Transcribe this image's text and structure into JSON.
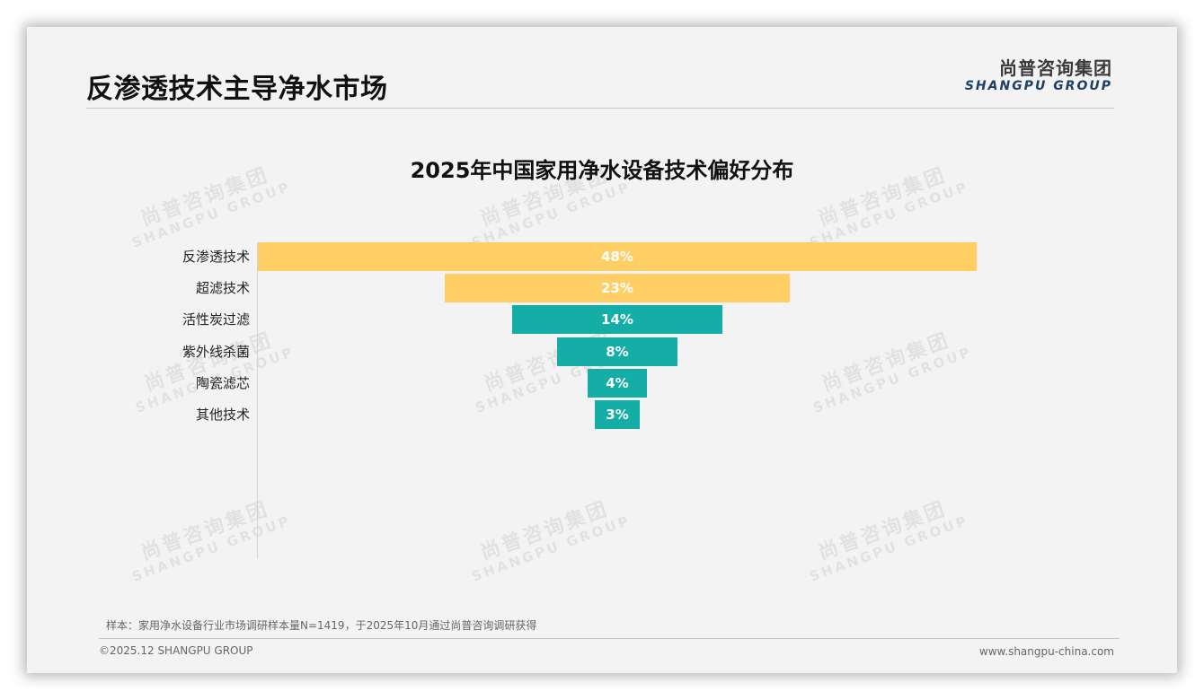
{
  "header": {
    "title": "反渗透技术主导净水市场",
    "logo_cn": "尚普咨询集团",
    "logo_en": "SHANGPU GROUP"
  },
  "watermark": {
    "cn": "尚普咨询集团",
    "en": "SHANGPU GROUP"
  },
  "colors": {
    "highlight": "#ffcf66",
    "primary": "#14aea6",
    "background": "#f3f3f3"
  },
  "chart_data": {
    "type": "bar",
    "subtype": "funnel",
    "title": "2025年中国家用净水设备技术偏好分布",
    "categories": [
      "反渗透技术",
      "超滤技术",
      "活性炭过滤",
      "紫外线杀菌",
      "陶瓷滤芯",
      "其他技术"
    ],
    "values": [
      48,
      23,
      14,
      8,
      4,
      3
    ],
    "value_labels": [
      "48%",
      "23%",
      "14%",
      "8%",
      "4%",
      "3%"
    ],
    "unit": "%",
    "bar_colors": [
      "#ffcf66",
      "#ffcf66",
      "#14aea6",
      "#14aea6",
      "#14aea6",
      "#14aea6"
    ],
    "xlabel": "",
    "ylabel": "",
    "grid": false,
    "legend": "none",
    "orientation": "horizontal-centered"
  },
  "footer": {
    "note": "样本：家用净水设备行业市场调研样本量N=1419，于2025年10月通过尚普咨询调研获得",
    "copyright": "©2025.12 SHANGPU GROUP",
    "website": "www.shangpu-china.com"
  }
}
